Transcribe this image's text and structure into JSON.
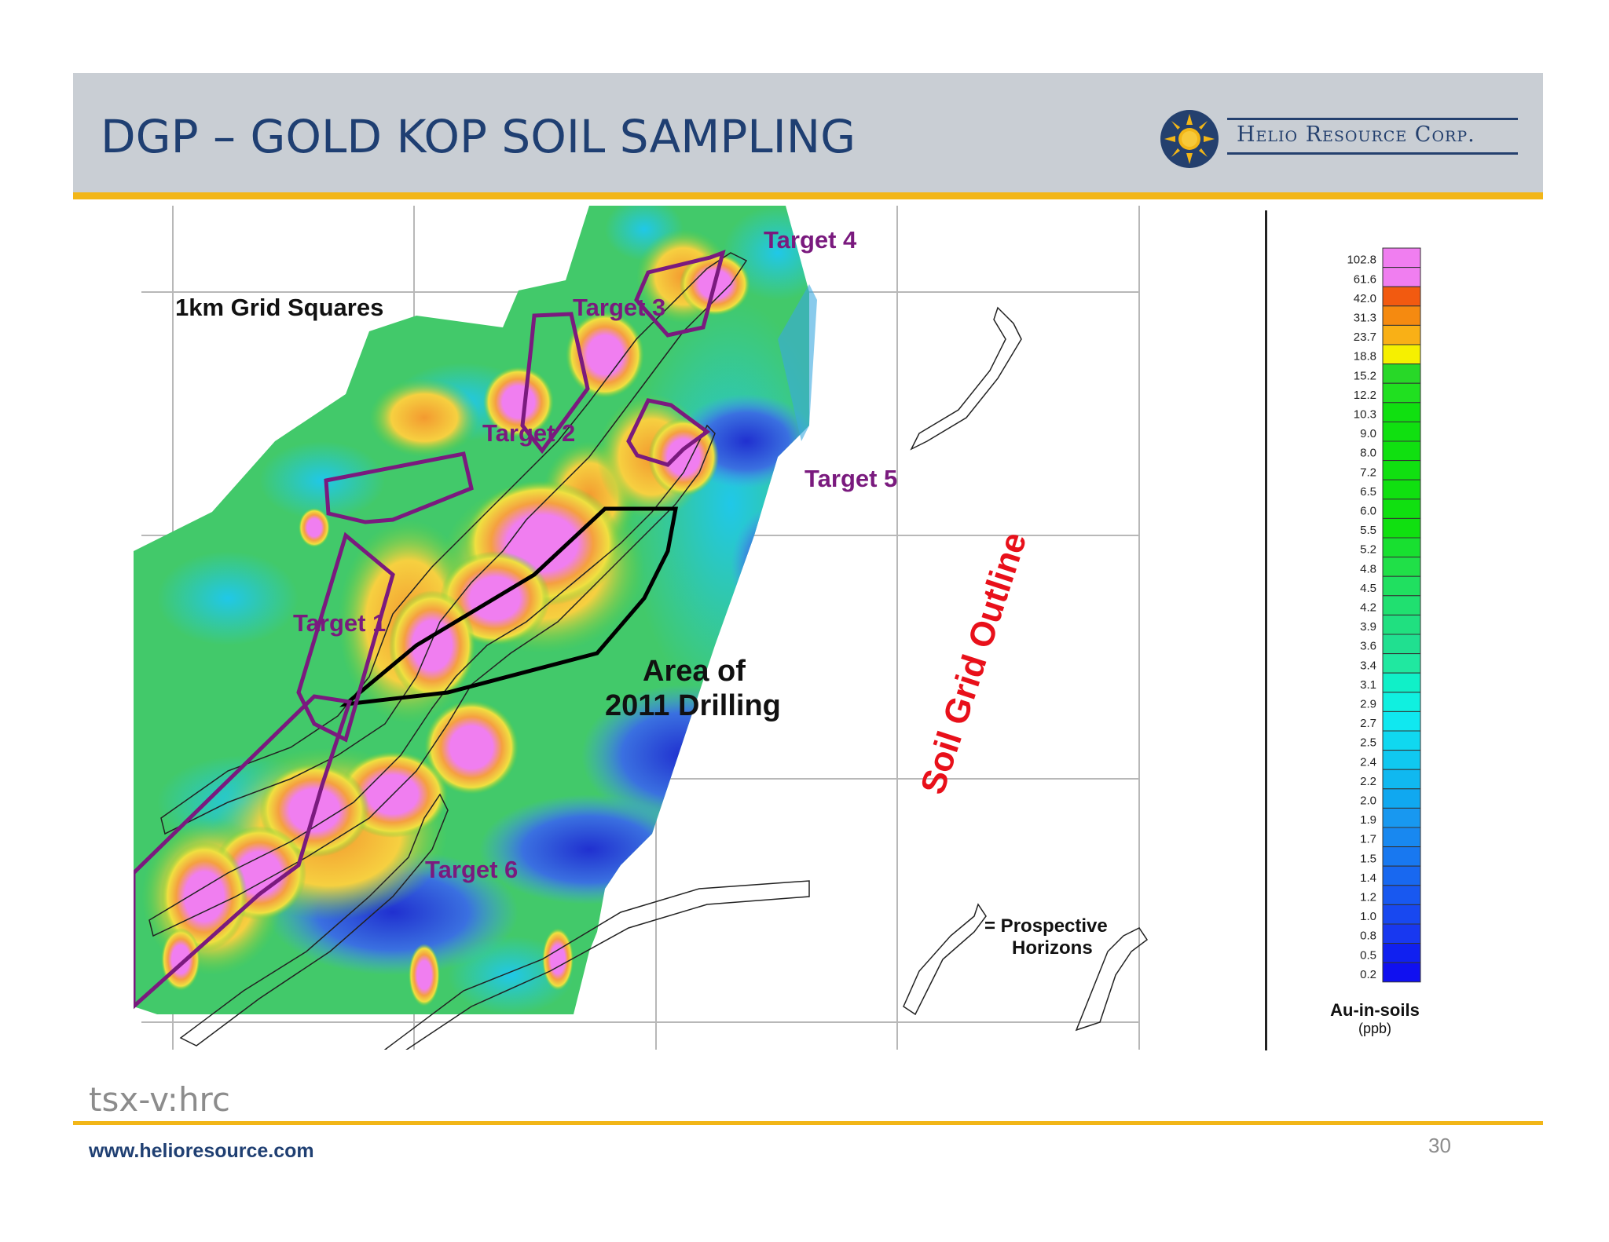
{
  "header": {
    "title": "DGP – GOLD KOP SOIL SAMPLING",
    "logo_text": "Helio Resource Corp.",
    "logo_icon": "sun-icon",
    "bar_color": "#c9ced4",
    "accent_color": "#f2b618",
    "title_color": "#1f3f72"
  },
  "map": {
    "grid_label": "1km Grid Squares",
    "targets": [
      "Target 1",
      "Target 2",
      "Target 3",
      "Target 4",
      "Target 5",
      "Target 6"
    ],
    "drilling_label_line1": "Area of",
    "drilling_label_line2": "2011 Drilling",
    "soil_outline_label": "Soil Grid Outline",
    "prospective_line1": "= Prospective",
    "prospective_line2": "Horizons",
    "north_icon": "north-arrow-icon",
    "target_outline_color": "#7a1a7e",
    "drilling_outline_color": "#000000",
    "soil_label_color": "#e8101a"
  },
  "legend": {
    "title": "Au-in-soils",
    "unit": "(ppb)",
    "values": [
      "102.8",
      "61.6",
      "42.0",
      "31.3",
      "23.7",
      "18.8",
      "15.2",
      "12.2",
      "10.3",
      "9.0",
      "8.0",
      "7.2",
      "6.5",
      "6.0",
      "5.5",
      "5.2",
      "4.8",
      "4.5",
      "4.2",
      "3.9",
      "3.6",
      "3.4",
      "3.1",
      "2.9",
      "2.7",
      "2.5",
      "2.4",
      "2.2",
      "2.0",
      "1.9",
      "1.7",
      "1.5",
      "1.4",
      "1.2",
      "1.0",
      "0.8",
      "0.5",
      "0.2"
    ],
    "colors": [
      "#f07ef0",
      "#f07ef0",
      "#f25a10",
      "#f58a10",
      "#f9b016",
      "#f6f000",
      "#28d828",
      "#20e020",
      "#10e010",
      "#10e010",
      "#10e010",
      "#10e010",
      "#10e010",
      "#10e010",
      "#10e010",
      "#18e030",
      "#20e048",
      "#20e060",
      "#20e070",
      "#20e080",
      "#20e090",
      "#20e8a0",
      "#10f0c8",
      "#10f0e0",
      "#10e8f0",
      "#10d8f0",
      "#10c8f0",
      "#10b8f0",
      "#10a8f0",
      "#1898f0",
      "#1888f0",
      "#1878f0",
      "#1868f0",
      "#1858f0",
      "#1848f0",
      "#1838f0",
      "#1020f0",
      "#1010f0"
    ]
  },
  "footer": {
    "ticker": "tsx-v:hrc",
    "website": "www.helioresource.com",
    "page_number": "30"
  }
}
